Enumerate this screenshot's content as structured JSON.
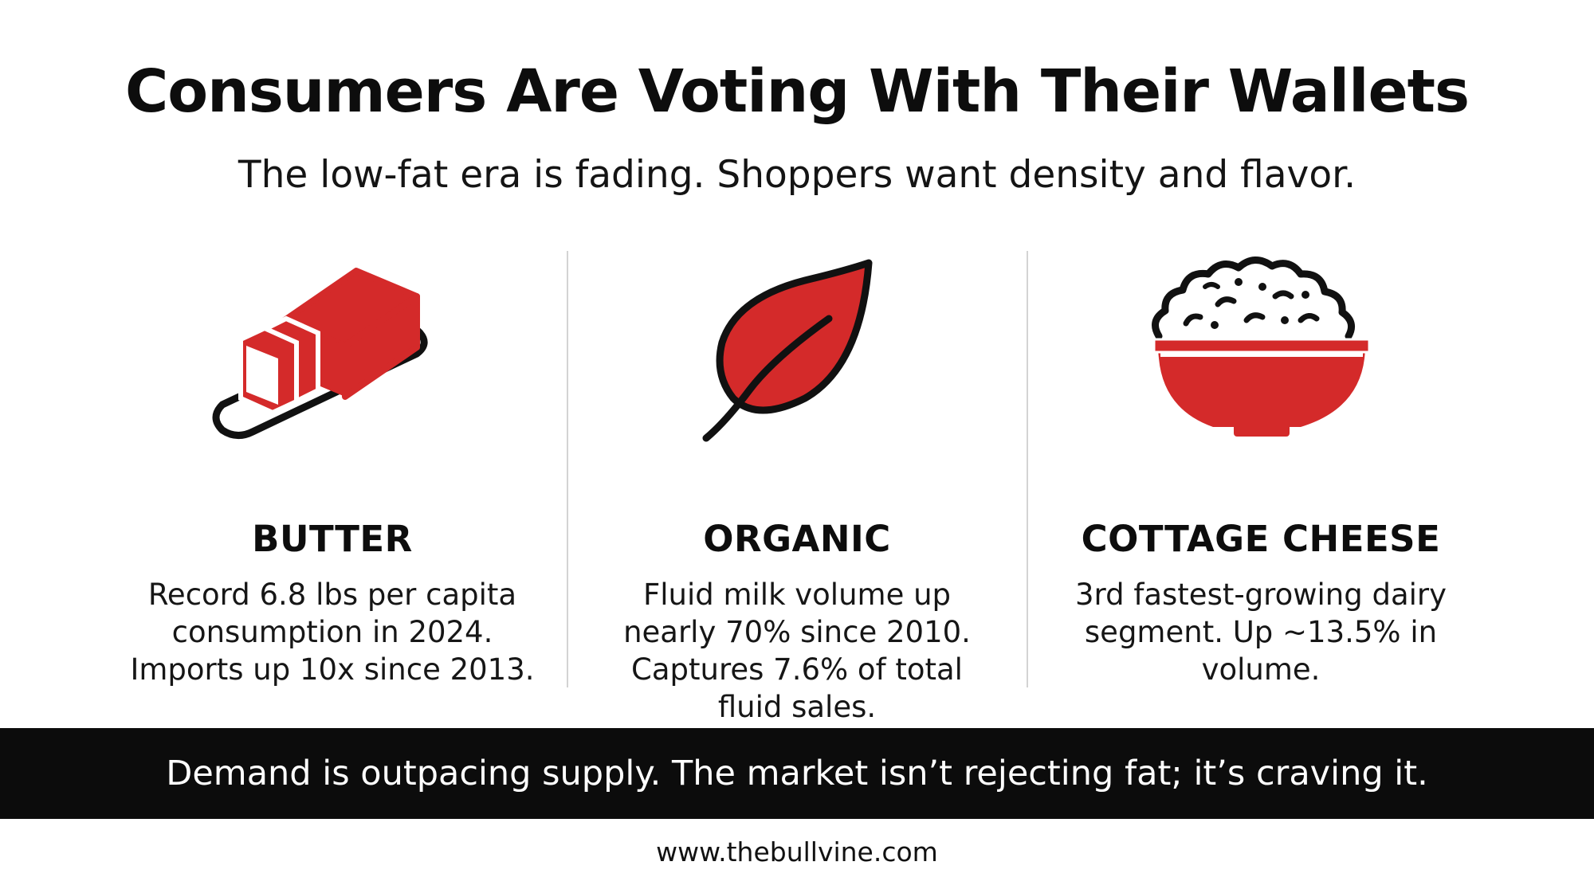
{
  "header": {
    "title": "Consumers Are Voting With Their Wallets",
    "subtitle": "The low-fat era is fading. Shoppers want density and flavor."
  },
  "colors": {
    "accent_red": "#d42a2a",
    "outline": "#111111",
    "banner_bg": "#0c0c0c",
    "divider": "#d3d3d3"
  },
  "columns": [
    {
      "icon": "butter-icon",
      "heading": "BUTTER",
      "lines": [
        "Record 6.8 lbs per capita",
        "consumption in 2024.",
        "Imports up 10x since 2013."
      ]
    },
    {
      "icon": "leaf-icon",
      "heading": "ORGANIC",
      "lines": [
        "Fluid milk volume up",
        "nearly 70% since 2010.",
        "Captures 7.6% of total",
        "fluid sales."
      ]
    },
    {
      "icon": "cottage-cheese-bowl-icon",
      "heading": "COTTAGE CHEESE",
      "lines": [
        "3rd fastest-growing dairy",
        "segment. Up ~13.5% in",
        "volume."
      ]
    }
  ],
  "banner": {
    "text": "Demand is outpacing supply. The market isn’t rejecting fat; it’s craving it."
  },
  "footer": {
    "url": "www.thebullvine.com"
  }
}
